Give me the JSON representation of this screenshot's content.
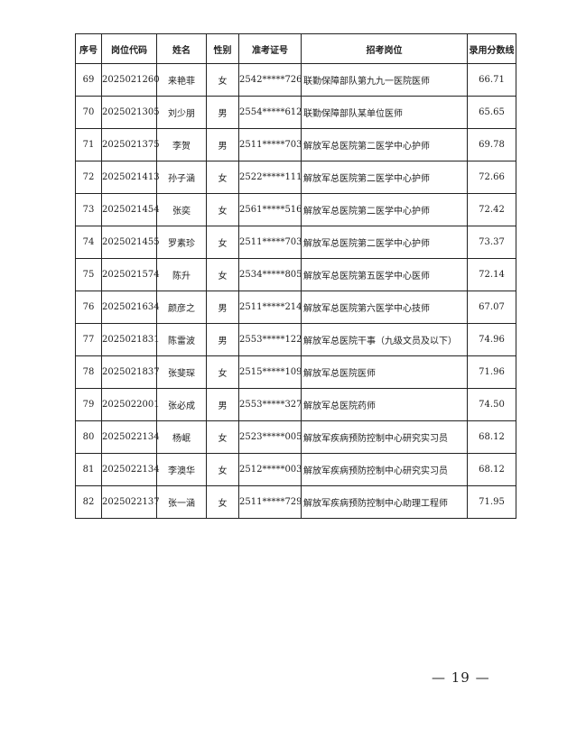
{
  "headers": [
    "序号",
    "岗位代码",
    "姓名",
    "性别",
    "准考证号",
    "招考岗位",
    "录用分数线"
  ],
  "rows": [
    [
      "69",
      "2025021260",
      "来艳菲",
      "女",
      "2542*****726",
      "联勤保障部队第九九一医院医师",
      "66.71"
    ],
    [
      "70",
      "2025021305",
      "刘少朋",
      "男",
      "2554*****612",
      "联勤保障部队某单位医师",
      "65.65"
    ],
    [
      "71",
      "2025021375",
      "李贺",
      "男",
      "2511*****703",
      "解放军总医院第二医学中心护师",
      "69.78"
    ],
    [
      "72",
      "2025021413",
      "孙子涵",
      "女",
      "2522*****111",
      "解放军总医院第二医学中心护师",
      "72.66"
    ],
    [
      "73",
      "2025021454",
      "张奕",
      "女",
      "2561*****516",
      "解放军总医院第二医学中心护师",
      "72.42"
    ],
    [
      "74",
      "2025021455",
      "罗素珍",
      "女",
      "2511*****703",
      "解放军总医院第二医学中心护师",
      "73.37"
    ],
    [
      "75",
      "2025021574",
      "陈升",
      "女",
      "2534*****805",
      "解放军总医院第五医学中心医师",
      "72.14"
    ],
    [
      "76",
      "2025021634",
      "颜彦之",
      "男",
      "2511*****214",
      "解放军总医院第六医学中心技师",
      "67.07"
    ],
    [
      "77",
      "2025021831",
      "陈雷波",
      "男",
      "2553*****122",
      "解放军总医院干事（九级文员及以下）",
      "74.96"
    ],
    [
      "78",
      "2025021837",
      "张斐琛",
      "女",
      "2515*****109",
      "解放军总医院医师",
      "71.96"
    ],
    [
      "79",
      "2025022001",
      "张必成",
      "男",
      "2553*****327",
      "解放军总医院药师",
      "74.50"
    ],
    [
      "80",
      "2025022134",
      "杨岷",
      "女",
      "2523*****005",
      "解放军疾病预防控制中心研究实习员",
      "68.12"
    ],
    [
      "81",
      "2025022134",
      "李澳华",
      "女",
      "2512*****003",
      "解放军疾病预防控制中心研究实习员",
      "68.12"
    ],
    [
      "82",
      "2025022137",
      "张一涵",
      "女",
      "2511*****729",
      "解放军疾病预防控制中心助理工程师",
      "71.95"
    ]
  ],
  "page_number": "—  19  —"
}
